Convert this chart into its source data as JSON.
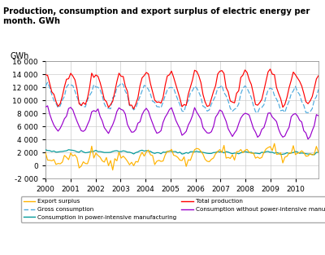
{
  "title": "Production, consumption and export surplus of electric energy per\nmonth. GWh",
  "ylabel": "GWh",
  "ylim": [
    -2000,
    16000
  ],
  "yticks": [
    -2000,
    0,
    2000,
    4000,
    6000,
    8000,
    10000,
    12000,
    14000,
    16000
  ],
  "xlim_start": 2000.0,
  "xlim_end": 2010.917,
  "xtick_years": [
    2000,
    2001,
    2002,
    2003,
    2004,
    2005,
    2006,
    2007,
    2008,
    2009,
    2010
  ],
  "colors": {
    "total_production": "#FF0000",
    "gross_consumption": "#4DAADD",
    "export_surplus": "#FFB300",
    "consumption_intensive": "#009999",
    "consumption_without": "#9900CC"
  }
}
